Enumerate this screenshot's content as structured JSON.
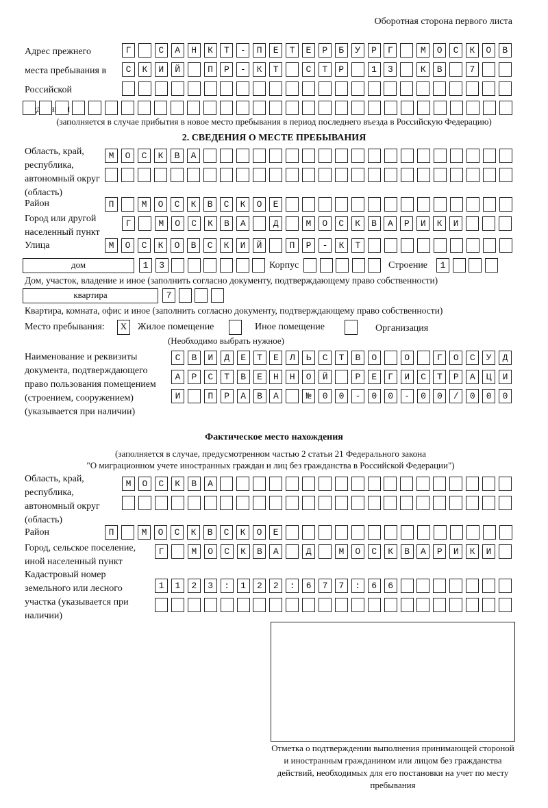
{
  "header": "Оборотная сторона первого листа",
  "prev_address": {
    "label": "Адрес прежнего места пребывания в Российской Федерации",
    "rows": [
      "Г САНКТ-ПЕТЕРБУРГ МОСКОВ",
      "СКИЙ ПР-КТ СТР 13 КВ 7  ",
      "                        ",
      "                              "
    ],
    "note": "(заполняется в случае прибытия в новое место пребывания в период последнего въезда в Российскую Федерацию)"
  },
  "section2": {
    "title": "2. СВЕДЕНИЯ О МЕСТЕ ПРЕБЫВАНИЯ",
    "region_label": "Область, край, республика, автономный округ (область)",
    "region_rows": [
      "МОСКВА                   ",
      "                         "
    ],
    "district_label": "Район",
    "district_row": "П МОСКВСКОЕ              ",
    "city_label": "Город или другой населенный пункт",
    "city_row": "Г МОСКВА Д МОСКВАРИКИ   ",
    "street_label": "Улица",
    "street_row": "МОСКОВСКИЙ ПР-КТ         ",
    "house_type": "дом",
    "house_row": "13      ",
    "korpus_label": "Корпус",
    "korpus_row": "     ",
    "stroenie_label": "Строение",
    "stroenie_row": "1   ",
    "house_note": "Дом, участок, владение и иное (заполнить согласно документу, подтверждающему право собственности)",
    "flat_type": "квартира",
    "flat_row": "7   ",
    "flat_note": "Квартира, комната, офис и иное (заполнить согласно документу, подтверждающему право собственности)",
    "stay_label": "Место пребывания:",
    "stay_options": [
      {
        "label": "Жилое помещение",
        "mark": "X",
        "checked": true
      },
      {
        "label": "Иное помещение",
        "mark": "",
        "checked": false
      },
      {
        "label": "Организация",
        "mark": "",
        "checked": false
      }
    ],
    "stay_note": "(Необходимо выбрать нужное)",
    "doc_label": "Наименование и реквизиты документа, подтверждающего право пользования помещением (строением, сооружением) (указывается при наличии)",
    "doc_rows": [
      "СВИДЕТЕЛЬСТВО О ГОСУД",
      "АРСТВЕННОЙ РЕГИСТРАЦИ",
      "И ПРАВА №00-00-00/000"
    ]
  },
  "actual": {
    "title": "Фактическое место нахождения",
    "note1": "(заполняется в случае, предусмотренном частью 2 статьи 21 Федерального закона",
    "note2": "\"О миграционном учете иностранных граждан и лиц без гражданства в Российской Федерации\")",
    "region_label": "Область, край, республика, автономный округ (область)",
    "region_rows": [
      "МОСКВА                  ",
      "                        "
    ],
    "district_label": "Район",
    "district_row": "П МОСКВСКОЕ              ",
    "city_label": "Город, сельское поселение, иной населенный пункт",
    "city_row": "Г МОСКВА Д МОСКВАРИКИ ",
    "cadastre_label": "Кадастровый номер земельного или лесного участка (указывается при наличии)",
    "cadastre_rows": [
      "1123:122:677:66       ",
      "                      "
    ]
  },
  "stamp_caption": "Отметка о подтверждении выполнения принимающей стороной и иностранным гражданином или лицом без гражданства действий, необходимых для его постановки на учет по месту пребывания"
}
